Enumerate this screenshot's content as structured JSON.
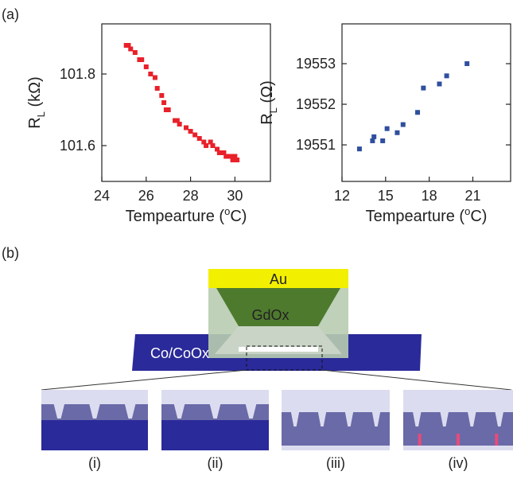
{
  "panel_labels": [
    "(a)",
    "(b)"
  ],
  "chart_data": [
    {
      "type": "scatter",
      "color": "#e8212a",
      "xlabel_parts": [
        "Tempearture (",
        "o",
        "C)"
      ],
      "ylabel_parts": [
        "R",
        "L",
        " (kΩ)"
      ],
      "x": [
        25.1,
        25.2,
        25.3,
        25.5,
        25.7,
        25.8,
        26.0,
        26.2,
        26.4,
        26.5,
        26.7,
        26.8,
        26.9,
        27.0,
        27.3,
        27.4,
        27.5,
        27.8,
        28.0,
        28.2,
        28.4,
        28.6,
        28.7,
        28.9,
        29.0,
        29.2,
        29.3,
        29.5,
        29.6,
        29.8,
        29.9,
        30.0,
        30.1
      ],
      "values": [
        101.88,
        101.88,
        101.87,
        101.86,
        101.84,
        101.84,
        101.82,
        101.8,
        101.79,
        101.76,
        101.74,
        101.72,
        101.7,
        101.7,
        101.67,
        101.67,
        101.66,
        101.65,
        101.64,
        101.63,
        101.62,
        101.61,
        101.6,
        101.61,
        101.6,
        101.59,
        101.58,
        101.58,
        101.57,
        101.57,
        101.56,
        101.57,
        101.56
      ],
      "xlim": [
        24,
        31.6
      ],
      "xticks": [
        24,
        26,
        28,
        30
      ],
      "ylim": [
        101.5,
        101.94
      ],
      "yticks": [
        101.6,
        101.8
      ],
      "right_ticks": false
    },
    {
      "type": "scatter",
      "color": "#2f4f9e",
      "xlabel_parts": [
        "Tempearture (",
        "o",
        "C)"
      ],
      "ylabel_parts": [
        "R",
        "L",
        " (Ω)"
      ],
      "x": [
        13.2,
        14.1,
        14.2,
        14.8,
        15.1,
        15.8,
        16.2,
        17.2,
        17.6,
        18.7,
        19.2,
        20.6
      ],
      "values": [
        19550.9,
        19551.1,
        19551.2,
        19551.1,
        19551.4,
        19551.3,
        19551.5,
        19551.8,
        19552.4,
        19552.5,
        19552.7,
        19553.0
      ],
      "xlim": [
        12,
        23.6
      ],
      "xticks": [
        12,
        15,
        18,
        21
      ],
      "ylim": [
        19550.1,
        19553.98
      ],
      "yticks": [
        19551,
        19552,
        19553
      ],
      "right_ticks": true
    }
  ],
  "diagram": {
    "layers": [
      "Au",
      "GdOx",
      "Co/CoOx"
    ],
    "insets": [
      "(i)",
      "(ii)",
      "(iii)",
      "(iv)"
    ]
  }
}
